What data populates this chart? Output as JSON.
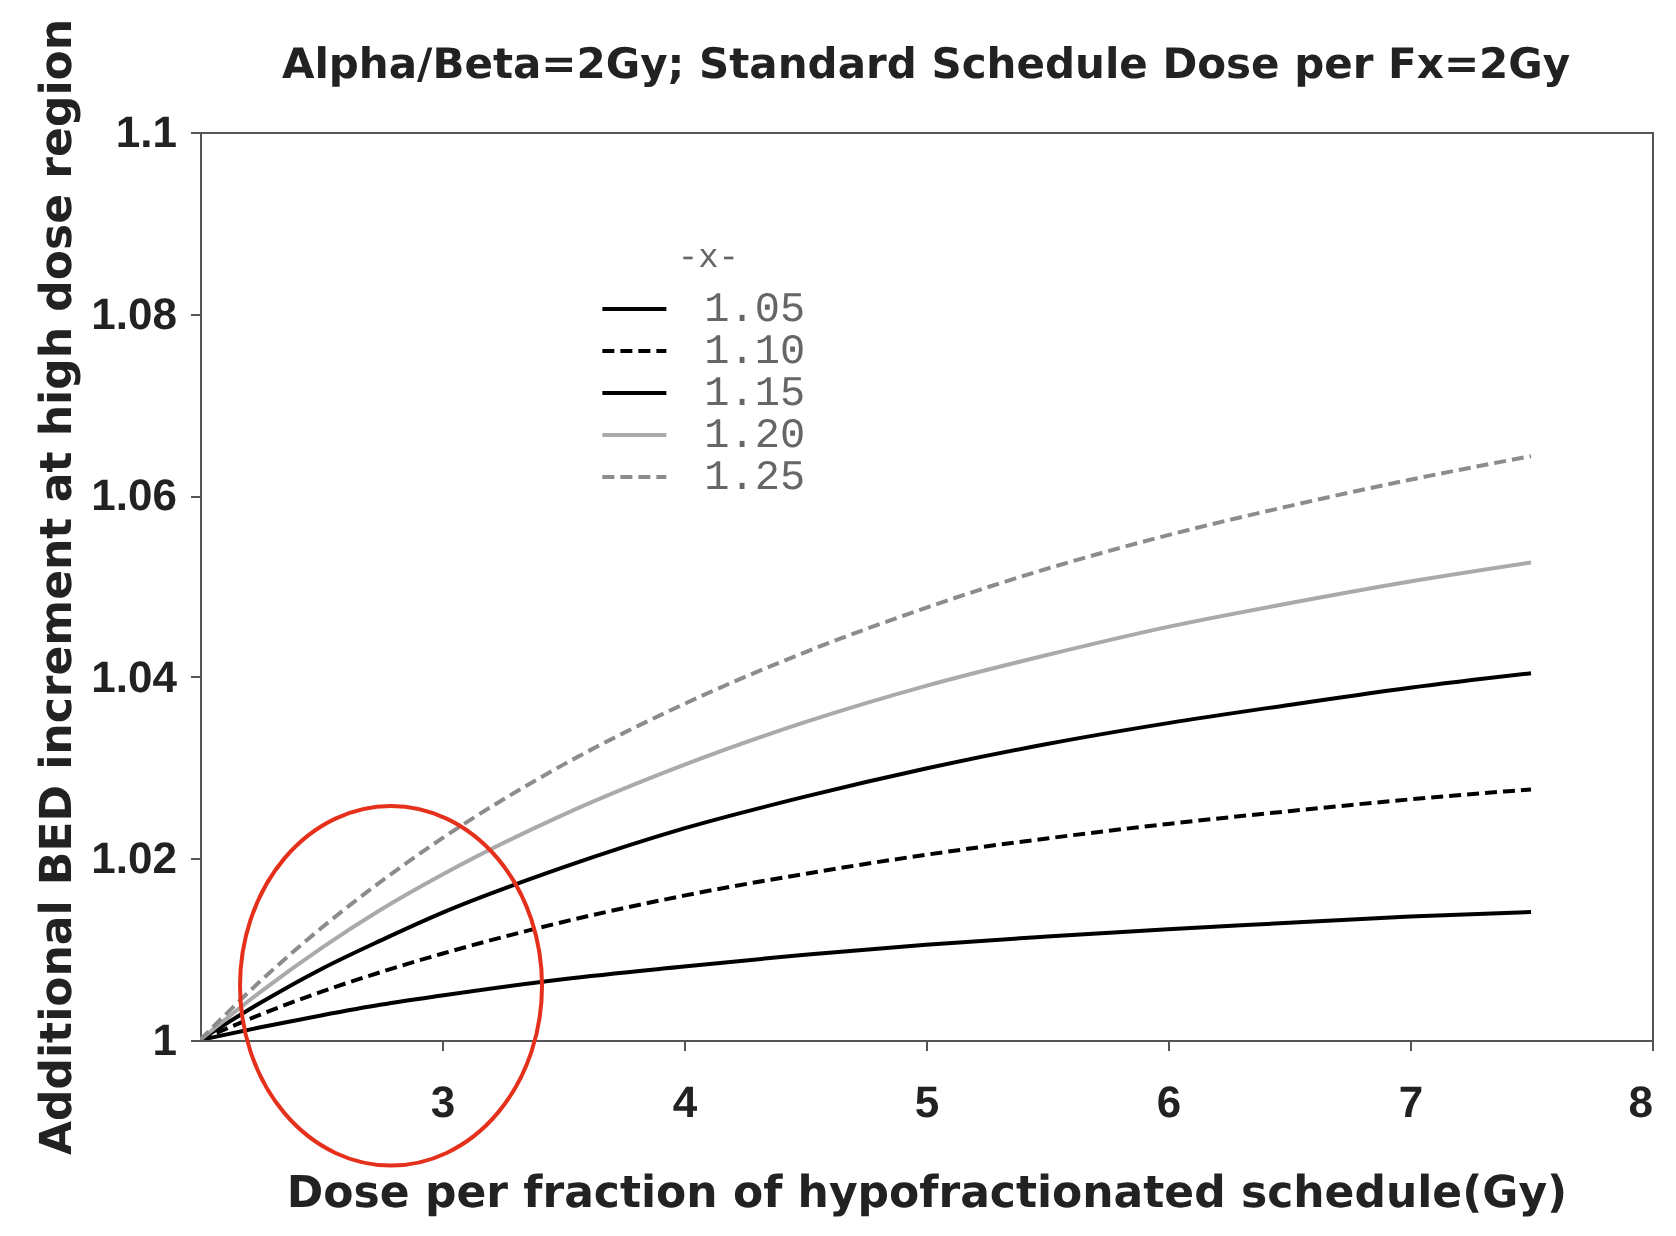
{
  "chart_data": {
    "type": "line",
    "title": "Alpha/Beta=2Gy; Standard Schedule Dose per Fx=2Gy",
    "xlabel": "Dose per fraction of hypofractionated schedule(Gy)",
    "ylabel": "Additional BED increment at high dose region",
    "legend_title": "-x-",
    "legend": "top left",
    "x": [
      2,
      2.25,
      2.5,
      2.75,
      3,
      3.5,
      4,
      4.5,
      5,
      5.5,
      6,
      6.5,
      7,
      7.5
    ],
    "series": [
      {
        "name": "1.05",
        "color": "#000000",
        "line_style": "solid",
        "values": [
          1,
          1.0014,
          1.0027,
          1.0039,
          1.0049,
          1.0067,
          1.0081,
          1.0094,
          1.0105,
          1.0114,
          1.0122,
          1.0129,
          1.0136,
          1.0141
        ]
      },
      {
        "name": "1.10",
        "color": "#000000",
        "line_style": "dashed",
        "values": [
          1,
          1.0028,
          1.0053,
          1.0075,
          1.0095,
          1.013,
          1.0159,
          1.0183,
          1.0204,
          1.0222,
          1.0238,
          1.0252,
          1.0265,
          1.0276
        ]
      },
      {
        "name": "1.15",
        "color": "#000000",
        "line_style": "solid",
        "values": [
          1,
          1.0041,
          1.0078,
          1.011,
          1.014,
          1.019,
          1.0233,
          1.0268,
          1.0299,
          1.0326,
          1.0349,
          1.0369,
          1.0388,
          1.0404
        ]
      },
      {
        "name": "1.20",
        "color": "#aaaaaa",
        "line_style": "solid",
        "values": [
          1,
          1.0053,
          1.0101,
          1.0144,
          1.0182,
          1.0248,
          1.0303,
          1.035,
          1.039,
          1.0424,
          1.0455,
          1.0481,
          1.0505,
          1.0526
        ]
      },
      {
        "name": "1.25",
        "color": "#8c8c8c",
        "line_style": "dashed",
        "values": [
          1,
          1.0065,
          1.0123,
          1.0175,
          1.0222,
          1.0303,
          1.037,
          1.0427,
          1.0476,
          1.0519,
          1.0556,
          1.0588,
          1.0617,
          1.0643
        ]
      }
    ],
    "xlim": [
      2,
      8
    ],
    "xticks": [
      3,
      4,
      5,
      6,
      7,
      8
    ],
    "ylim": [
      1,
      1.1
    ],
    "yticks": [
      1,
      1.02,
      1.04,
      1.06,
      1.08,
      1.1
    ]
  }
}
